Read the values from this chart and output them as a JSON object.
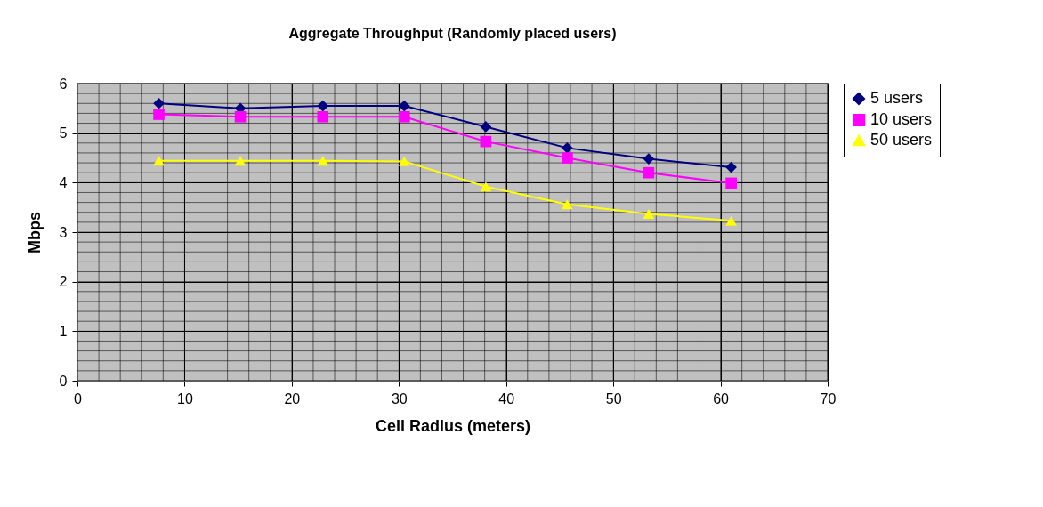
{
  "chart_data": {
    "type": "line",
    "title": "Aggregate Throughput (Randomly placed users)",
    "xlabel": "Cell Radius (meters)",
    "ylabel": "Mbps",
    "x": [
      7.6,
      15.2,
      22.9,
      30.5,
      38.1,
      45.7,
      53.3,
      61.0
    ],
    "series": [
      {
        "name": "5 users",
        "color": "#000080",
        "marker": "diamond",
        "values": [
          5.6,
          5.5,
          5.55,
          5.55,
          5.13,
          4.7,
          4.48,
          4.31
        ]
      },
      {
        "name": "10 users",
        "color": "#ff00ff",
        "marker": "square",
        "values": [
          5.38,
          5.33,
          5.33,
          5.33,
          4.83,
          4.5,
          4.2,
          3.99
        ]
      },
      {
        "name": "50 users",
        "color": "#ffff00",
        "marker": "triangle",
        "values": [
          4.44,
          4.44,
          4.44,
          4.43,
          3.92,
          3.56,
          3.37,
          3.23
        ]
      }
    ],
    "xlim": [
      0,
      70
    ],
    "xticks": [
      0,
      10,
      20,
      30,
      40,
      50,
      60,
      70
    ],
    "ylim": [
      0,
      6
    ],
    "yticks": [
      0,
      1,
      2,
      3,
      4,
      5,
      6
    ],
    "grid": true,
    "legend": "right",
    "line_style": "solid"
  }
}
